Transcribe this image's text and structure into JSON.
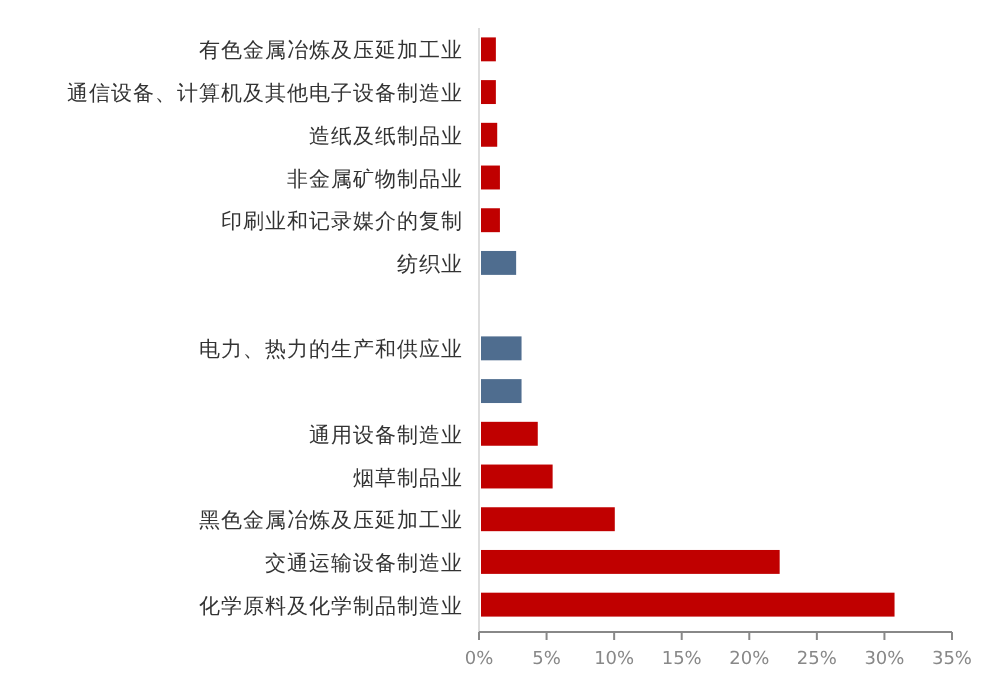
{
  "chart_data": {
    "type": "bar",
    "orientation": "horizontal",
    "categories": [
      "有色金属冶炼及压延加工业",
      "通信设备、计算机及其他电子设备制造业",
      "造纸及纸制品业",
      "非金属矿物制品业",
      "印刷业和记录媒介的复制",
      "纺织业",
      null,
      "电力、热力的生产和供应业",
      null,
      "通用设备制造业",
      "烟草制品业",
      "黑色金属冶炼及压延加工业",
      "交通运输设备制造业",
      "化学原料及化学制品制造业"
    ],
    "values": [
      1.1,
      1.1,
      1.2,
      1.4,
      1.4,
      2.6,
      null,
      3.0,
      3.0,
      4.2,
      5.3,
      9.9,
      22.1,
      30.6
    ],
    "colors": [
      "#c00000",
      "#c00000",
      "#c00000",
      "#c00000",
      "#c00000",
      "#4f6d8f",
      null,
      "#4f6d8f",
      "#4f6d8f",
      "#c00000",
      "#c00000",
      "#c00000",
      "#c00000",
      "#c00000"
    ],
    "xlim": [
      0,
      35
    ],
    "xticks": [
      {
        "value": 0,
        "label": "0%"
      },
      {
        "value": 5,
        "label": "5%"
      },
      {
        "value": 10,
        "label": "10%"
      },
      {
        "value": 15,
        "label": "15%"
      },
      {
        "value": 20,
        "label": "20%"
      },
      {
        "value": 25,
        "label": "25%"
      },
      {
        "value": 30,
        "label": "30%"
      },
      {
        "value": 35,
        "label": "35%"
      }
    ]
  }
}
